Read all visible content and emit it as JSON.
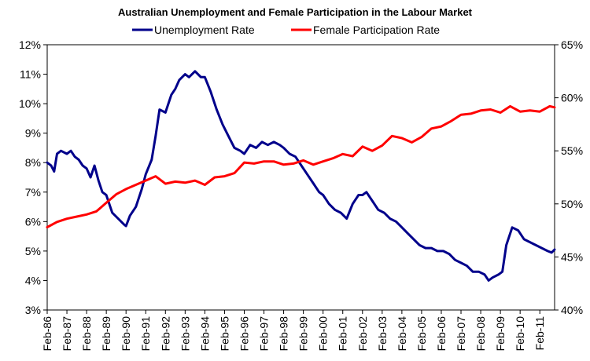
{
  "chart_data": {
    "type": "line",
    "title": "Australian Unemployment and Female Participation in the Labour Market",
    "xlabel": "",
    "ylabel": "",
    "y2label": "",
    "grid": false,
    "legend": "top",
    "categories": [
      "Feb-86",
      "Feb-87",
      "Feb-88",
      "Feb-89",
      "Feb-90",
      "Feb-91",
      "Feb-92",
      "Feb-93",
      "Feb-94",
      "Feb-95",
      "Feb-96",
      "Feb-97",
      "Feb-98",
      "Feb-99",
      "Feb-00",
      "Feb-01",
      "Feb-02",
      "Feb-03",
      "Feb-04",
      "Feb-05",
      "Feb-06",
      "Feb-07",
      "Feb-08",
      "Feb-09",
      "Feb-10",
      "Feb-11"
    ],
    "x_range": [
      1986.0,
      2011.75
    ],
    "ylim_left": [
      3,
      12
    ],
    "ylim_right": [
      40,
      65
    ],
    "yticks_left": [
      "3%",
      "4%",
      "5%",
      "6%",
      "7%",
      "8%",
      "9%",
      "10%",
      "11%",
      "12%"
    ],
    "yticks_right": [
      "40%",
      "45%",
      "50%",
      "55%",
      "60%",
      "65%"
    ],
    "series": [
      {
        "name": "Unemployment Rate",
        "axis": "left",
        "color": "#00008B",
        "x": [
          1986.0,
          1986.2,
          1986.35,
          1986.5,
          1986.7,
          1987.0,
          1987.2,
          1987.4,
          1987.6,
          1987.8,
          1988.0,
          1988.2,
          1988.4,
          1988.6,
          1988.8,
          1989.0,
          1989.3,
          1989.6,
          1989.9,
          1990.0,
          1990.2,
          1990.5,
          1990.8,
          1991.0,
          1991.3,
          1991.5,
          1991.7,
          1992.0,
          1992.3,
          1992.5,
          1992.7,
          1993.0,
          1993.2,
          1993.5,
          1993.8,
          1994.0,
          1994.3,
          1994.6,
          1994.9,
          1995.2,
          1995.5,
          1995.8,
          1996.0,
          1996.3,
          1996.6,
          1996.9,
          1997.2,
          1997.5,
          1997.8,
          1998.0,
          1998.3,
          1998.6,
          1998.9,
          1999.2,
          1999.5,
          1999.8,
          2000.0,
          2000.3,
          2000.6,
          2000.9,
          2001.2,
          2001.5,
          2001.8,
          2002.0,
          2002.2,
          2002.5,
          2002.8,
          2003.1,
          2003.4,
          2003.7,
          2004.0,
          2004.3,
          2004.6,
          2004.9,
          2005.2,
          2005.5,
          2005.8,
          2006.1,
          2006.4,
          2006.7,
          2007.0,
          2007.3,
          2007.6,
          2007.9,
          2008.2,
          2008.4,
          2008.6,
          2008.9,
          2009.1,
          2009.3,
          2009.6,
          2009.9,
          2010.2,
          2010.5,
          2010.8,
          2011.1,
          2011.4,
          2011.6,
          2011.75
        ],
        "values": [
          8.0,
          7.9,
          7.7,
          8.3,
          8.4,
          8.3,
          8.4,
          8.2,
          8.1,
          7.9,
          7.8,
          7.5,
          7.9,
          7.4,
          7.0,
          6.9,
          6.3,
          6.1,
          5.9,
          5.85,
          6.2,
          6.5,
          7.1,
          7.6,
          8.1,
          8.9,
          9.8,
          9.7,
          10.3,
          10.5,
          10.8,
          11.0,
          10.9,
          11.1,
          10.9,
          10.9,
          10.4,
          9.8,
          9.3,
          8.9,
          8.5,
          8.4,
          8.3,
          8.6,
          8.5,
          8.7,
          8.6,
          8.7,
          8.6,
          8.5,
          8.3,
          8.2,
          7.9,
          7.6,
          7.3,
          7.0,
          6.9,
          6.6,
          6.4,
          6.3,
          6.1,
          6.6,
          6.9,
          6.9,
          7.0,
          6.7,
          6.4,
          6.3,
          6.1,
          6.0,
          5.8,
          5.6,
          5.4,
          5.2,
          5.1,
          5.1,
          5.0,
          5.0,
          4.9,
          4.7,
          4.6,
          4.5,
          4.3,
          4.3,
          4.2,
          4.0,
          4.1,
          4.2,
          4.3,
          5.2,
          5.8,
          5.7,
          5.4,
          5.3,
          5.2,
          5.1,
          5.0,
          4.95,
          5.05
        ]
      },
      {
        "name": "Female Participation Rate",
        "axis": "right",
        "color": "#FF0000",
        "x": [
          1986.0,
          1986.5,
          1987.0,
          1987.5,
          1988.0,
          1988.5,
          1989.0,
          1989.5,
          1990.0,
          1990.5,
          1991.0,
          1991.5,
          1992.0,
          1992.5,
          1993.0,
          1993.5,
          1994.0,
          1994.5,
          1995.0,
          1995.5,
          1996.0,
          1996.5,
          1997.0,
          1997.5,
          1998.0,
          1998.5,
          1999.0,
          1999.5,
          2000.0,
          2000.5,
          2001.0,
          2001.5,
          2002.0,
          2002.5,
          2003.0,
          2003.5,
          2004.0,
          2004.5,
          2005.0,
          2005.5,
          2006.0,
          2006.5,
          2007.0,
          2007.5,
          2008.0,
          2008.5,
          2009.0,
          2009.5,
          2010.0,
          2010.5,
          2011.0,
          2011.5,
          2011.75
        ],
        "values": [
          47.8,
          48.3,
          48.6,
          48.8,
          49.0,
          49.3,
          50.1,
          50.9,
          51.4,
          51.8,
          52.2,
          52.6,
          51.9,
          52.1,
          52.0,
          52.2,
          51.8,
          52.5,
          52.6,
          52.9,
          53.9,
          53.8,
          54.0,
          54.0,
          53.7,
          53.8,
          54.1,
          53.7,
          54.0,
          54.3,
          54.7,
          54.5,
          55.4,
          55.0,
          55.5,
          56.4,
          56.2,
          55.8,
          56.3,
          57.1,
          57.3,
          57.8,
          58.4,
          58.5,
          58.8,
          58.9,
          58.6,
          59.2,
          58.7,
          58.8,
          58.7,
          59.2,
          59.1
        ]
      }
    ]
  }
}
